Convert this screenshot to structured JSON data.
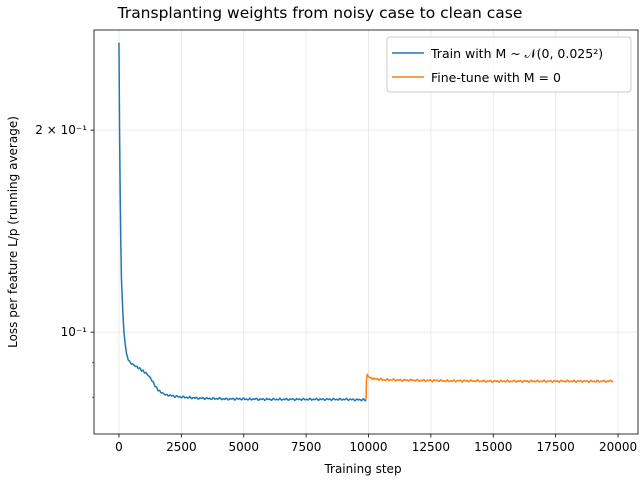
{
  "chart_data": {
    "type": "line",
    "title": "Transplanting weights from noisy case to clean case",
    "xlabel": "Training step",
    "ylabel": "Loss per feature L/p (running average)",
    "xlim": [
      -1000,
      20800
    ],
    "ylim": [
      0.0705,
      0.282
    ],
    "yscale": "log",
    "grid": true,
    "x_ticks": [
      0,
      2500,
      5000,
      7500,
      10000,
      12500,
      15000,
      17500,
      20000
    ],
    "x_tick_labels": [
      "0",
      "2500",
      "5000",
      "7500",
      "10000",
      "12500",
      "15000",
      "17500",
      "20000"
    ],
    "y_major_ticks": [
      0.1,
      0.2
    ],
    "y_major_tick_labels": [
      "10⁻¹",
      "2 × 10⁻¹"
    ],
    "y_minor_ticks": [
      0.08,
      0.09,
      0.3
    ],
    "legend_position": "upper right",
    "series": [
      {
        "name": "Train with M ~ 𝒩(0, 0.025²)",
        "color": "#1f77b4",
        "x": [
          0,
          25,
          50,
          75,
          100,
          150,
          200,
          250,
          300,
          400,
          500,
          600,
          700,
          800,
          900,
          1000,
          1100,
          1200,
          1300,
          1400,
          1500,
          1600,
          1700,
          1800,
          1900,
          2000,
          2200,
          2400,
          2600,
          2800,
          3000,
          3200,
          3400,
          3600,
          3800,
          4000,
          4200,
          4400,
          4600,
          4800,
          5000,
          5200,
          5400,
          5600,
          5800,
          6000,
          6200,
          6400,
          6600,
          6800,
          7000,
          7200,
          7400,
          7600,
          7800,
          8000,
          8200,
          8400,
          8600,
          8800,
          9000,
          9200,
          9400,
          9600,
          9800,
          9900
        ],
        "y": [
          0.27,
          0.2,
          0.16,
          0.135,
          0.12,
          0.108,
          0.1,
          0.096,
          0.093,
          0.0905,
          0.0898,
          0.0893,
          0.0888,
          0.0884,
          0.0878,
          0.0873,
          0.0868,
          0.086,
          0.085,
          0.0838,
          0.0826,
          0.0818,
          0.0813,
          0.0809,
          0.0806,
          0.0805,
          0.0803,
          0.0801,
          0.08,
          0.0799,
          0.0798,
          0.0797,
          0.0797,
          0.0796,
          0.0796,
          0.0796,
          0.0795,
          0.0795,
          0.0795,
          0.0795,
          0.0795,
          0.0794,
          0.0795,
          0.0794,
          0.0794,
          0.0794,
          0.0794,
          0.0794,
          0.0794,
          0.0794,
          0.0794,
          0.0794,
          0.0794,
          0.0794,
          0.0794,
          0.0794,
          0.0794,
          0.0794,
          0.0794,
          0.0794,
          0.0794,
          0.0794,
          0.0793,
          0.0793,
          0.0793,
          0.0793
        ]
      },
      {
        "name": "Fine-tune with M = 0",
        "color": "#ff7f0e",
        "x": [
          9900,
          9920,
          9950,
          10000,
          10100,
          10200,
          10400,
          10600,
          10800,
          11000,
          11200,
          11400,
          11600,
          11800,
          12000,
          12200,
          12400,
          12600,
          12800,
          13000,
          13200,
          13400,
          13600,
          13800,
          14000,
          14200,
          14400,
          14600,
          14800,
          15000,
          15200,
          15400,
          15600,
          15800,
          16000,
          16200,
          16400,
          16600,
          16800,
          17000,
          17200,
          17400,
          17600,
          17800,
          18000,
          18200,
          18400,
          18600,
          18800,
          19000,
          19200,
          19400,
          19600,
          19800
        ],
        "y": [
          0.0793,
          0.085,
          0.0862,
          0.0858,
          0.0854,
          0.0852,
          0.0851,
          0.0849,
          0.0849,
          0.0849,
          0.0848,
          0.0848,
          0.0848,
          0.0848,
          0.0847,
          0.0847,
          0.0847,
          0.0847,
          0.0847,
          0.0846,
          0.0846,
          0.0846,
          0.0846,
          0.0846,
          0.0846,
          0.0846,
          0.0846,
          0.0845,
          0.0845,
          0.0845,
          0.0845,
          0.0845,
          0.0845,
          0.0845,
          0.0845,
          0.0845,
          0.0845,
          0.0845,
          0.0845,
          0.0845,
          0.0845,
          0.0845,
          0.0845,
          0.0845,
          0.0845,
          0.0845,
          0.0845,
          0.0845,
          0.0845,
          0.0845,
          0.0845,
          0.0845,
          0.0845,
          0.0846
        ]
      }
    ]
  }
}
